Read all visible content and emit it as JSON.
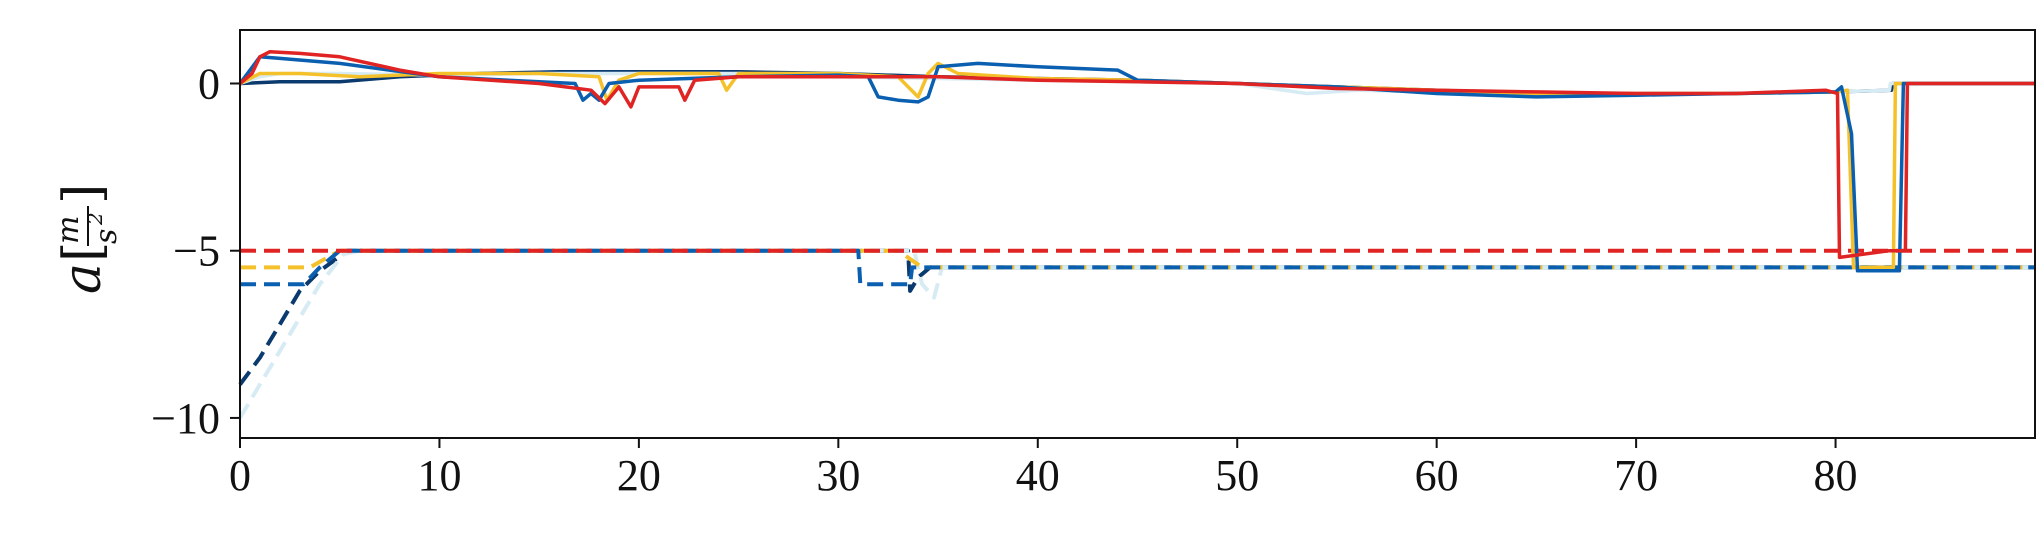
{
  "chart_data": {
    "type": "line",
    "title": "",
    "xlabel": "",
    "ylabel": {
      "variable": "a",
      "unit_numerator": "m",
      "unit_denominator": "s",
      "unit_exponent": "2",
      "open_bracket": "[",
      "close_bracket": "]"
    },
    "xlim": [
      0,
      90
    ],
    "ylim": [
      -10.6,
      1.6
    ],
    "xticks": [
      0,
      10,
      20,
      30,
      40,
      50,
      60,
      70,
      80
    ],
    "xtick_labels": [
      "0",
      "10",
      "20",
      "30",
      "40",
      "50",
      "60",
      "70",
      "80"
    ],
    "yticks": [
      0,
      -5,
      -10
    ],
    "ytick_labels": [
      "0",
      "−5",
      "−10"
    ],
    "grid": false,
    "legend": "none",
    "colors": {
      "dark_blue": "#0b3a6e",
      "light_blue": "#d6ebf3",
      "yellow": "#f5c12b",
      "mid_blue": "#0a5fb0",
      "red": "#e02323"
    },
    "series": [
      {
        "color": "#0b3a6e",
        "style": "solid",
        "points": [
          [
            0,
            0.0
          ],
          [
            2,
            0.05
          ],
          [
            5,
            0.05
          ],
          [
            8,
            0.2
          ],
          [
            12,
            0.3
          ],
          [
            16,
            0.35
          ],
          [
            20,
            0.35
          ],
          [
            25,
            0.35
          ],
          [
            30,
            0.3
          ],
          [
            35,
            0.2
          ],
          [
            40,
            0.15
          ],
          [
            45,
            0.1
          ],
          [
            50,
            0.0
          ],
          [
            55,
            -0.1
          ],
          [
            60,
            -0.2
          ],
          [
            65,
            -0.3
          ],
          [
            70,
            -0.3
          ],
          [
            75,
            -0.3
          ],
          [
            80,
            -0.25
          ],
          [
            82.8,
            -0.2
          ],
          [
            82.85,
            0.0
          ],
          [
            90,
            0.0
          ]
        ]
      },
      {
        "color": "#d6ebf3",
        "style": "solid",
        "points": [
          [
            0,
            0.0
          ],
          [
            1,
            0.2
          ],
          [
            2,
            0.3
          ],
          [
            5,
            0.3
          ],
          [
            10,
            0.25
          ],
          [
            15,
            0.3
          ],
          [
            20,
            0.3
          ],
          [
            25,
            0.3
          ],
          [
            30,
            0.2
          ],
          [
            35,
            0.15
          ],
          [
            40,
            0.1
          ],
          [
            45,
            0.05
          ],
          [
            50,
            0.0
          ],
          [
            53.5,
            -0.3
          ],
          [
            56,
            -0.2
          ],
          [
            60,
            -0.25
          ],
          [
            65,
            -0.3
          ],
          [
            70,
            -0.3
          ],
          [
            75,
            -0.3
          ],
          [
            80,
            -0.25
          ],
          [
            82.7,
            -0.2
          ],
          [
            82.75,
            0.0
          ],
          [
            90,
            0.0
          ]
        ]
      },
      {
        "color": "#f5c12b",
        "style": "solid",
        "points": [
          [
            0,
            0.0
          ],
          [
            1,
            0.3
          ],
          [
            3,
            0.3
          ],
          [
            6,
            0.2
          ],
          [
            10,
            0.3
          ],
          [
            15,
            0.3
          ],
          [
            18,
            0.2
          ],
          [
            18.4,
            -0.5
          ],
          [
            19,
            0.1
          ],
          [
            20,
            0.3
          ],
          [
            24,
            0.3
          ],
          [
            24.4,
            -0.2
          ],
          [
            25,
            0.3
          ],
          [
            30,
            0.3
          ],
          [
            33,
            0.2
          ],
          [
            34,
            -0.4
          ],
          [
            34.5,
            0.3
          ],
          [
            35,
            0.6
          ],
          [
            36,
            0.3
          ],
          [
            40,
            0.15
          ],
          [
            45,
            0.1
          ],
          [
            50,
            0.0
          ],
          [
            55,
            -0.1
          ],
          [
            60,
            -0.2
          ],
          [
            65,
            -0.3
          ],
          [
            70,
            -0.3
          ],
          [
            75,
            -0.3
          ],
          [
            80,
            -0.25
          ],
          [
            80.6,
            -0.2
          ],
          [
            80.9,
            -5.5
          ],
          [
            82.9,
            -5.5
          ],
          [
            83.0,
            0.0
          ],
          [
            90,
            0.0
          ]
        ]
      },
      {
        "color": "#0a5fb0",
        "style": "solid",
        "points": [
          [
            0,
            0.0
          ],
          [
            1,
            0.8
          ],
          [
            2,
            0.75
          ],
          [
            5,
            0.6
          ],
          [
            10,
            0.2
          ],
          [
            15,
            0.05
          ],
          [
            16.8,
            0.0
          ],
          [
            17.2,
            -0.5
          ],
          [
            17.6,
            -0.3
          ],
          [
            18,
            -0.5
          ],
          [
            18.5,
            0.0
          ],
          [
            20,
            0.1
          ],
          [
            25,
            0.2
          ],
          [
            30,
            0.25
          ],
          [
            31.5,
            0.2
          ],
          [
            32,
            -0.4
          ],
          [
            33,
            -0.5
          ],
          [
            34,
            -0.55
          ],
          [
            34.5,
            -0.4
          ],
          [
            35,
            0.5
          ],
          [
            37,
            0.6
          ],
          [
            40,
            0.5
          ],
          [
            44,
            0.4
          ],
          [
            45,
            0.1
          ],
          [
            50,
            0.0
          ],
          [
            55,
            -0.1
          ],
          [
            60,
            -0.3
          ],
          [
            65,
            -0.4
          ],
          [
            70,
            -0.35
          ],
          [
            75,
            -0.3
          ],
          [
            80,
            -0.25
          ],
          [
            80.3,
            -0.1
          ],
          [
            80.8,
            -1.5
          ],
          [
            81.1,
            -5.6
          ],
          [
            83.2,
            -5.6
          ],
          [
            83.4,
            0.0
          ],
          [
            90,
            0.0
          ]
        ]
      },
      {
        "color": "#e02323",
        "style": "solid",
        "points": [
          [
            0,
            0.0
          ],
          [
            0.6,
            0.3
          ],
          [
            1,
            0.8
          ],
          [
            1.5,
            0.95
          ],
          [
            3,
            0.9
          ],
          [
            5,
            0.8
          ],
          [
            8,
            0.4
          ],
          [
            10,
            0.2
          ],
          [
            15,
            0.0
          ],
          [
            17.6,
            -0.2
          ],
          [
            18.3,
            -0.6
          ],
          [
            19,
            -0.1
          ],
          [
            19.6,
            -0.7
          ],
          [
            20,
            -0.1
          ],
          [
            22,
            -0.1
          ],
          [
            22.3,
            -0.5
          ],
          [
            22.8,
            0.1
          ],
          [
            25,
            0.2
          ],
          [
            30,
            0.2
          ],
          [
            35,
            0.2
          ],
          [
            40,
            0.1
          ],
          [
            45,
            0.05
          ],
          [
            50,
            0.0
          ],
          [
            55,
            -0.15
          ],
          [
            60,
            -0.2
          ],
          [
            65,
            -0.25
          ],
          [
            70,
            -0.3
          ],
          [
            75,
            -0.3
          ],
          [
            79.5,
            -0.2
          ],
          [
            80.1,
            -0.3
          ],
          [
            80.2,
            -5.2
          ],
          [
            82.7,
            -5.0
          ],
          [
            83.5,
            -5.0
          ],
          [
            83.6,
            0.0
          ],
          [
            90,
            0.0
          ]
        ]
      },
      {
        "color": "#0b3a6e",
        "style": "dashed",
        "points": [
          [
            0,
            -9.0
          ],
          [
            1,
            -8.2
          ],
          [
            2,
            -7.2
          ],
          [
            3,
            -6.2
          ],
          [
            4,
            -5.6
          ],
          [
            5.4,
            -5.0
          ],
          [
            33.5,
            -5.0
          ],
          [
            33.6,
            -6.2
          ],
          [
            34,
            -5.8
          ],
          [
            34.6,
            -5.5
          ],
          [
            90,
            -5.5
          ]
        ]
      },
      {
        "color": "#d6ebf3",
        "style": "dashed",
        "points": [
          [
            0,
            -10.0
          ],
          [
            1,
            -9.0
          ],
          [
            2,
            -8.0
          ],
          [
            3,
            -7.0
          ],
          [
            4,
            -6.0
          ],
          [
            5.2,
            -5.1
          ],
          [
            6,
            -5.0
          ],
          [
            33.8,
            -5.0
          ],
          [
            34.2,
            -6.0
          ],
          [
            34.8,
            -6.4
          ],
          [
            35.2,
            -5.5
          ],
          [
            90,
            -5.5
          ]
        ]
      },
      {
        "color": "#f5c12b",
        "style": "dashed",
        "points": [
          [
            0,
            -5.5
          ],
          [
            3.5,
            -5.5
          ],
          [
            5,
            -5.0
          ],
          [
            33,
            -5.0
          ],
          [
            34.2,
            -5.5
          ],
          [
            90,
            -5.5
          ]
        ]
      },
      {
        "color": "#0a5fb0",
        "style": "dashed",
        "points": [
          [
            0,
            -6.0
          ],
          [
            3.2,
            -6.0
          ],
          [
            4,
            -5.5
          ],
          [
            5,
            -5.0
          ],
          [
            31,
            -5.0
          ],
          [
            31.1,
            -6.0
          ],
          [
            33.6,
            -6.0
          ],
          [
            33.7,
            -5.5
          ],
          [
            90,
            -5.5
          ]
        ]
      },
      {
        "color": "#e02323",
        "style": "dashed",
        "points": [
          [
            0,
            -5.0
          ],
          [
            90,
            -5.0
          ]
        ]
      }
    ]
  }
}
